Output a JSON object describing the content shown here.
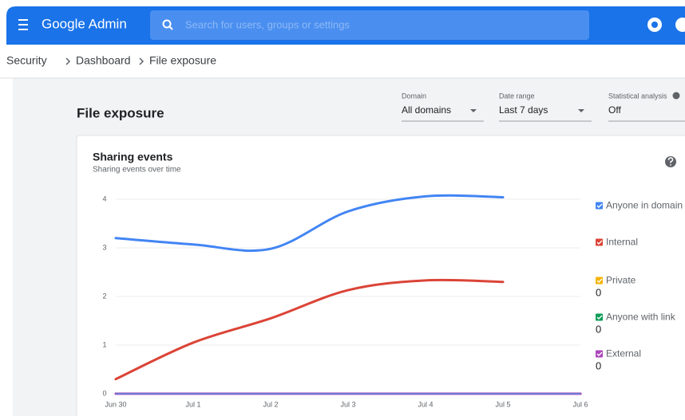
{
  "header": {
    "product": "Google Admin",
    "search_placeholder": "Search for users, groups or settings"
  },
  "breadcrumb": [
    "Security",
    "Dashboard",
    "File exposure"
  ],
  "page_title": "File exposure",
  "filters": [
    {
      "label": "Domain",
      "value": "All domains"
    },
    {
      "label": "Date range",
      "value": "Last 7 days"
    },
    {
      "label": "Statistical analysis",
      "value": "Off"
    }
  ],
  "chart_data": {
    "type": "line",
    "title": "Sharing events",
    "subtitle": "Sharing events over time",
    "categories": [
      "Jun 30",
      "Jul 1",
      "Jul 2",
      "Jul 3",
      "Jul 4",
      "Jul 5",
      "Jul 6"
    ],
    "ylim": [
      0,
      4
    ],
    "yticks": [
      0,
      1,
      2,
      3,
      4
    ],
    "grid": true,
    "series": [
      {
        "name": "Anyone in domain",
        "color": "#4285f4",
        "values": [
          3.2,
          3.07,
          2.98,
          3.75,
          4.06,
          4.04,
          null
        ]
      },
      {
        "name": "Internal",
        "color": "#db4437",
        "values": [
          0.3,
          1.05,
          1.55,
          2.13,
          2.33,
          2.3,
          null
        ]
      },
      {
        "name": "Private",
        "color": "#f4b400",
        "values": [
          0,
          0,
          0,
          0,
          0,
          0,
          0
        ],
        "total": 0
      },
      {
        "name": "Anyone with link",
        "color": "#0f9d58",
        "values": [
          0,
          0,
          0,
          0,
          0,
          0,
          0
        ],
        "total": 0
      },
      {
        "name": "External",
        "color": "#ab47bc",
        "values": [
          0,
          0,
          0,
          0,
          0,
          0,
          0
        ],
        "total": 0
      }
    ]
  }
}
